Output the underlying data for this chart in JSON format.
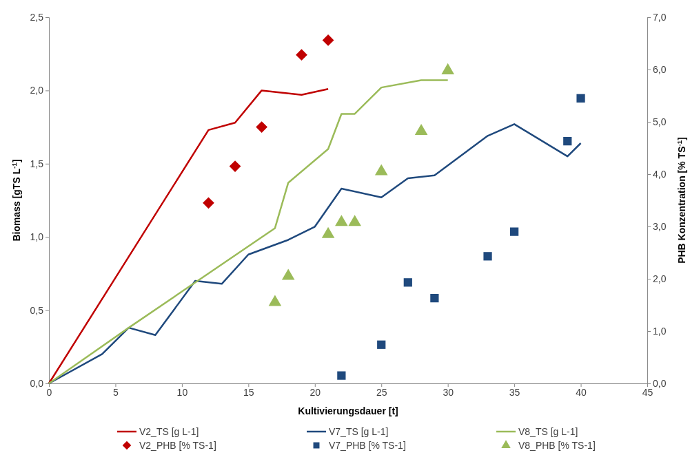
{
  "chart_data": {
    "type": "line",
    "xlabel": "Kultivierungsdauer [t]",
    "ylabel": "Biomass [gTS L$^{-1}$]",
    "y2label": "PHB Konzentration [% TS$^{-1}$]",
    "xlim": [
      0,
      45
    ],
    "xticks": [
      0,
      5,
      10,
      15,
      20,
      25,
      30,
      35,
      40,
      45
    ],
    "ylim": [
      0,
      2.5
    ],
    "yticks": [
      {
        "value": 0,
        "label": "0,0"
      },
      {
        "value": 0.5,
        "label": "0,5"
      },
      {
        "value": 1,
        "label": "1,0"
      },
      {
        "value": 1.5,
        "label": "1,5"
      },
      {
        "value": 2,
        "label": "2,0"
      },
      {
        "value": 2.5,
        "label": "2,5"
      }
    ],
    "y2lim": [
      0,
      7
    ],
    "y2ticks": [
      {
        "value": 0,
        "label": "0,0"
      },
      {
        "value": 1,
        "label": "1,0"
      },
      {
        "value": 2,
        "label": "2,0"
      },
      {
        "value": 3,
        "label": "3,0"
      },
      {
        "value": 4,
        "label": "4,0"
      },
      {
        "value": 5,
        "label": "5,0"
      },
      {
        "value": 6,
        "label": "6,0"
      },
      {
        "value": 7,
        "label": "7,0"
      }
    ],
    "grid": false,
    "legend": "bottom",
    "series": [
      {
        "name": "V2_TS [g L-1]",
        "color": "#c00000",
        "marker": "none",
        "x": [
          0,
          12,
          14,
          16,
          19,
          21
        ],
        "values": [
          0,
          1.73,
          1.78,
          2.0,
          1.97,
          2.01
        ]
      },
      {
        "name": "V7_TS [g L-1]",
        "color": "#1f497d",
        "marker": "none",
        "x": [
          0,
          4,
          6,
          8,
          11,
          13,
          15,
          18,
          20,
          22,
          25,
          27,
          29,
          33,
          35,
          39,
          40
        ],
        "values": [
          0,
          0.2,
          0.38,
          0.33,
          0.7,
          0.68,
          0.88,
          0.98,
          1.07,
          1.33,
          1.27,
          1.4,
          1.42,
          1.69,
          1.77,
          1.55,
          1.64
        ]
      },
      {
        "name": "V8_TS [g L-1]",
        "color": "#9bbb59",
        "marker": "none",
        "x": [
          0,
          6,
          17,
          18,
          21,
          22,
          23,
          25,
          28,
          30
        ],
        "values": [
          0,
          0.38,
          1.06,
          1.37,
          1.6,
          1.84,
          1.84,
          2.02,
          2.07,
          2.07
        ]
      },
      {
        "name": "V2_PHB [% TS-1]",
        "type": "scatter",
        "axis": "y2",
        "color": "#c00000",
        "marker": "diamond",
        "x": [
          12,
          14,
          16,
          19,
          21
        ],
        "values": [
          3.45,
          4.15,
          4.9,
          6.28,
          6.56
        ]
      },
      {
        "name": "V7_PHB [% TS-1]",
        "type": "scatter",
        "axis": "y2",
        "color": "#1f497d",
        "marker": "square",
        "x": [
          22,
          25,
          27,
          29,
          33,
          35,
          39,
          40
        ],
        "values": [
          0.15,
          0.74,
          1.93,
          1.63,
          2.43,
          2.9,
          4.63,
          5.45
        ]
      },
      {
        "name": "V8_PHB [% TS-1]",
        "type": "scatter",
        "axis": "y2",
        "color": "#9bbb59",
        "marker": "triangle",
        "x": [
          17,
          18,
          21,
          22,
          23,
          25,
          28,
          30
        ],
        "values": [
          1.55,
          2.05,
          2.85,
          3.08,
          3.08,
          4.05,
          4.82,
          5.98
        ]
      }
    ]
  }
}
